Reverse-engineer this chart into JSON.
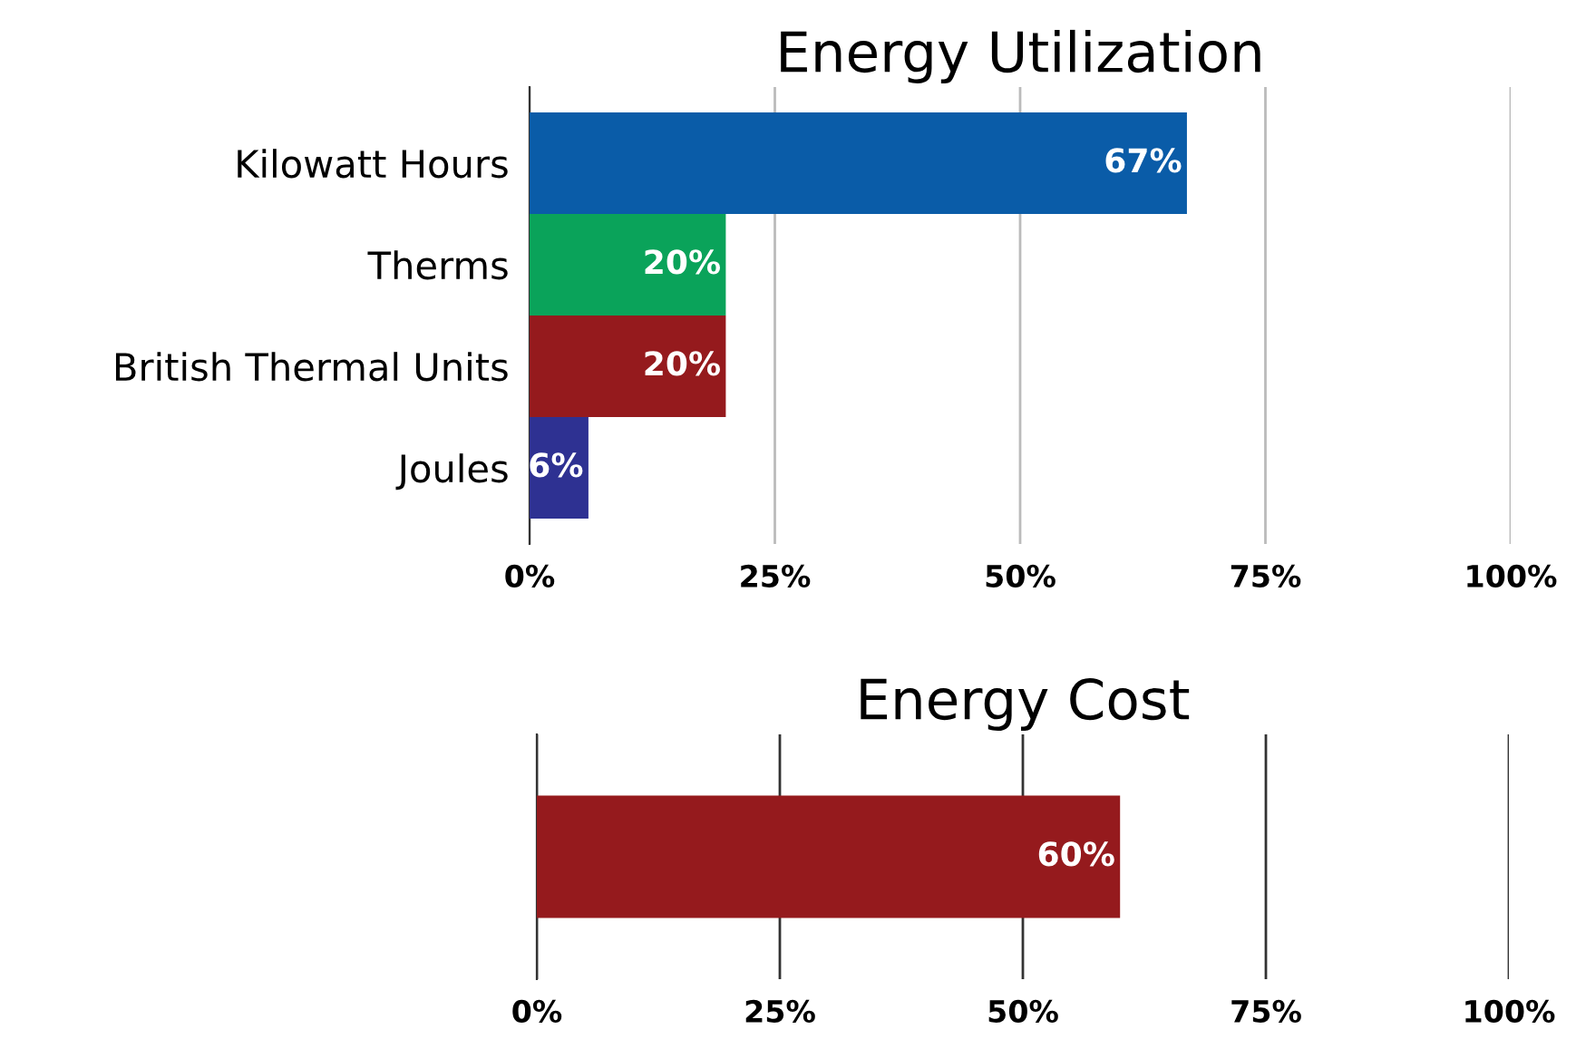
{
  "chart_data": [
    {
      "type": "bar",
      "orientation": "horizontal",
      "title": "Energy Utilization",
      "categories": [
        "Kilowatt Hours",
        "Therms",
        "British Thermal Units",
        "Joules"
      ],
      "values": [
        67,
        20,
        20,
        6
      ],
      "colors": [
        "#0a5ca8",
        "#0aa35a",
        "#951a1d",
        "#2e3192"
      ],
      "value_labels": [
        "67%",
        "20%",
        "20%",
        "6%"
      ],
      "xlim": [
        0,
        100
      ],
      "xticks": [
        {
          "value": 0,
          "label": "0%"
        },
        {
          "value": 25,
          "label": "25%"
        },
        {
          "value": 50,
          "label": "50%"
        },
        {
          "value": 75,
          "label": "75%"
        },
        {
          "value": 100,
          "label": "100%"
        }
      ],
      "grid": "x",
      "legend": false
    },
    {
      "type": "bar",
      "orientation": "horizontal",
      "title": "Energy Cost",
      "categories": [
        null
      ],
      "values": [
        60
      ],
      "colors": [
        "#951a1d"
      ],
      "value_labels": [
        "60%"
      ],
      "xlim": [
        0,
        100
      ],
      "xticks": [
        {
          "value": 0,
          "label": "0%"
        },
        {
          "value": 25,
          "label": "25%"
        },
        {
          "value": 50,
          "label": "50%"
        },
        {
          "value": 75,
          "label": "75%"
        },
        {
          "value": 100,
          "label": "100%"
        }
      ],
      "grid": "x",
      "legend": false
    }
  ]
}
